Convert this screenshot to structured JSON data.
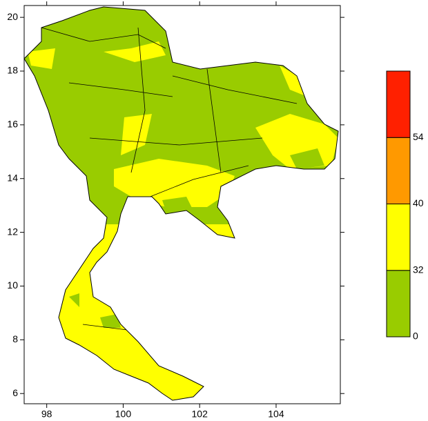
{
  "map": {
    "xlim": [
      97.41,
      105.68
    ],
    "ylim": [
      5.62,
      20.44
    ],
    "xticks": [
      98,
      100,
      102,
      104
    ],
    "yticks": [
      6,
      8,
      10,
      12,
      14,
      16,
      18,
      20
    ]
  },
  "legend": {
    "bins": [
      0,
      32,
      40,
      54
    ],
    "colors": [
      "#99cc00",
      "#ffff00",
      "#ff9900",
      "#ff2000"
    ]
  }
}
